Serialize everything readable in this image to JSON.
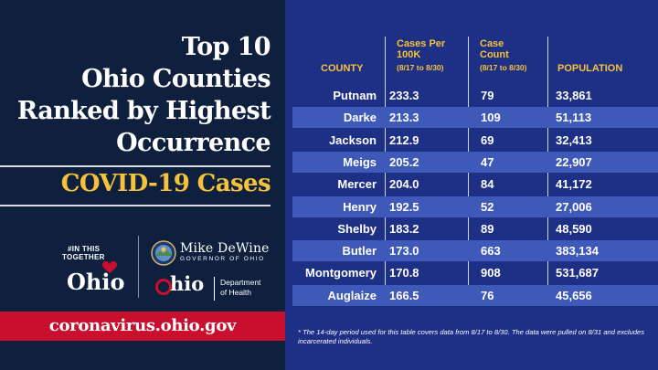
{
  "title_lines": [
    "Top 10",
    "Ohio Counties",
    "Ranked by Highest",
    "Occurrence"
  ],
  "subtitle": "COVID-19 Cases",
  "website": "coronavirus.ohio.gov",
  "logos": {
    "in_this_together": [
      "#IN THIS",
      "TOGETHER",
      "Ohio"
    ],
    "governor_name": "Mike DeWine",
    "governor_title": "GOVERNOR OF OHIO",
    "doh_name": "hio",
    "doh_dept_lines": [
      "Department",
      "of Health"
    ]
  },
  "table": {
    "headers": {
      "county": "COUNTY",
      "rate": "Cases Per 100K",
      "rate_period": "(8/17 to 8/30)",
      "count": "Case Count",
      "count_period": "(8/17 to 8/30)",
      "population": "POPULATION"
    },
    "rows": [
      {
        "county": "Putnam",
        "rate": "233.3",
        "count": "79",
        "population": "33,861"
      },
      {
        "county": "Darke",
        "rate": "213.3",
        "count": "109",
        "population": "51,113"
      },
      {
        "county": "Jackson",
        "rate": "212.9",
        "count": "69",
        "population": "32,413"
      },
      {
        "county": "Meigs",
        "rate": "205.2",
        "count": "47",
        "population": "22,907"
      },
      {
        "county": "Mercer",
        "rate": "204.0",
        "count": "84",
        "population": "41,172"
      },
      {
        "county": "Henry",
        "rate": "192.5",
        "count": "52",
        "population": "27,006"
      },
      {
        "county": "Shelby",
        "rate": "183.2",
        "count": "89",
        "population": "48,590"
      },
      {
        "county": "Butler",
        "rate": "173.0",
        "count": "663",
        "population": "383,134"
      },
      {
        "county": "Montgomery",
        "rate": "170.8",
        "count": "908",
        "population": "531,687"
      },
      {
        "county": "Auglaize",
        "rate": "166.5",
        "count": "76",
        "population": "45,656"
      }
    ]
  },
  "footnote": "* The 14-day period used for this table covers data from 8/17 to 8/30. The data were pulled on 8/31 and excludes incarcerated individuals.",
  "colors": {
    "background": "#1e2f86",
    "panel": "#0f1f3e",
    "accent_yellow": "#f5c33b",
    "accent_red": "#c8102e",
    "row_stripe": "#3e59b8"
  }
}
